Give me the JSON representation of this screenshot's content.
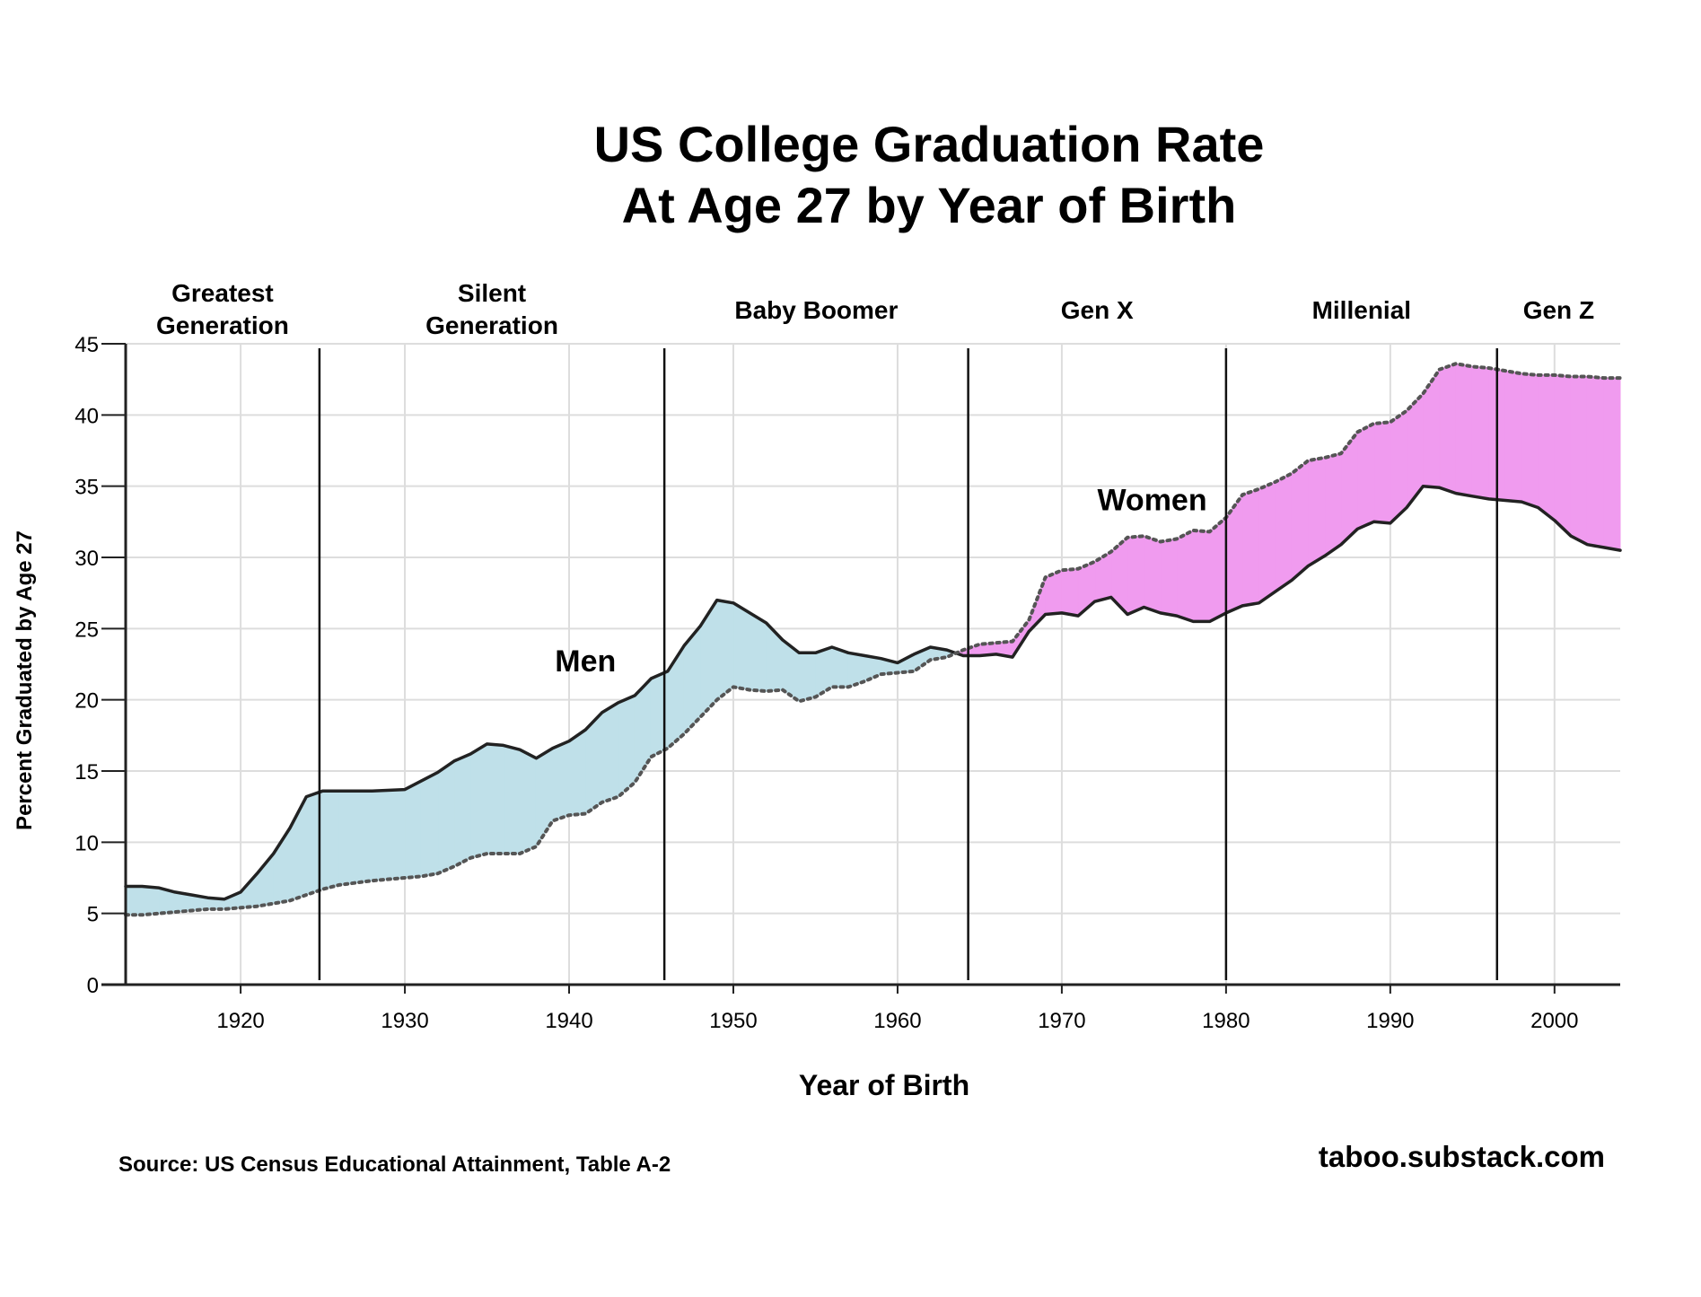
{
  "chart_data": {
    "type": "area",
    "title_lines": [
      "US College Graduation Rate",
      "At Age 27 by Year of Birth"
    ],
    "xlabel": "Year of Birth",
    "ylabel": "Percent Graduated by Age 27",
    "xlim": [
      1913,
      2004
    ],
    "ylim": [
      0,
      45
    ],
    "x_ticks": [
      1920,
      1930,
      1940,
      1950,
      1960,
      1970,
      1980,
      1990,
      2000
    ],
    "y_ticks": [
      0,
      5,
      10,
      15,
      20,
      25,
      30,
      35,
      40,
      45
    ],
    "grid": true,
    "series": [
      {
        "name": "Men",
        "style": "solid",
        "color": "#222222",
        "x": [
          1913,
          1914,
          1915,
          1916,
          1917,
          1918,
          1919,
          1920,
          1921,
          1922,
          1923,
          1924,
          1925,
          1926,
          1928,
          1930,
          1931,
          1932,
          1933,
          1934,
          1935,
          1936,
          1937,
          1938,
          1939,
          1940,
          1941,
          1942,
          1943,
          1944,
          1945,
          1946,
          1947,
          1948,
          1949,
          1950,
          1951,
          1952,
          1953,
          1954,
          1955,
          1956,
          1957,
          1958,
          1959,
          1960,
          1961,
          1962,
          1963,
          1964,
          1965,
          1966,
          1967,
          1968,
          1969,
          1970,
          1971,
          1972,
          1973,
          1974,
          1975,
          1976,
          1977,
          1978,
          1979,
          1980,
          1981,
          1982,
          1983,
          1984,
          1985,
          1986,
          1987,
          1988,
          1989,
          1990,
          1991,
          1992,
          1993,
          1994,
          1995,
          1996,
          1997,
          1998,
          1999,
          2000,
          2001,
          2002,
          2003,
          2004
        ],
        "values": [
          6.9,
          6.9,
          6.8,
          6.5,
          6.3,
          6.1,
          6.0,
          6.5,
          7.8,
          9.2,
          11.0,
          13.2,
          13.6,
          13.6,
          13.6,
          13.7,
          14.3,
          14.9,
          15.7,
          16.2,
          16.9,
          16.8,
          16.5,
          15.9,
          16.6,
          17.1,
          17.9,
          19.1,
          19.8,
          20.3,
          21.5,
          22.0,
          23.8,
          25.2,
          27.0,
          26.8,
          26.1,
          25.4,
          24.2,
          23.3,
          23.3,
          23.7,
          23.3,
          23.1,
          22.9,
          22.6,
          23.2,
          23.7,
          23.5,
          23.1,
          23.1,
          23.2,
          23.0,
          24.8,
          26.0,
          26.1,
          25.9,
          26.9,
          27.2,
          26.0,
          26.5,
          26.1,
          25.9,
          25.5,
          25.5,
          26.1,
          26.6,
          26.8,
          27.6,
          28.4,
          29.4,
          30.1,
          30.9,
          32.0,
          32.5,
          32.4,
          33.5,
          35.0,
          34.9,
          34.5,
          34.3,
          34.1,
          34.0,
          33.9,
          33.5,
          32.6,
          31.5,
          30.9,
          30.7,
          30.5
        ]
      },
      {
        "name": "Women",
        "style": "dotted",
        "color": "#555555",
        "x": [
          1913,
          1914,
          1915,
          1916,
          1917,
          1918,
          1919,
          1920,
          1921,
          1922,
          1923,
          1924,
          1925,
          1926,
          1928,
          1930,
          1931,
          1932,
          1933,
          1934,
          1935,
          1936,
          1937,
          1938,
          1939,
          1940,
          1941,
          1942,
          1943,
          1944,
          1945,
          1946,
          1947,
          1948,
          1949,
          1950,
          1951,
          1952,
          1953,
          1954,
          1955,
          1956,
          1957,
          1958,
          1959,
          1960,
          1961,
          1962,
          1963,
          1964,
          1965,
          1966,
          1967,
          1968,
          1969,
          1970,
          1971,
          1972,
          1973,
          1974,
          1975,
          1976,
          1977,
          1978,
          1979,
          1980,
          1981,
          1982,
          1983,
          1984,
          1985,
          1986,
          1987,
          1988,
          1989,
          1990,
          1991,
          1992,
          1993,
          1994,
          1995,
          1996,
          1997,
          1998,
          1999,
          2000,
          2001,
          2002,
          2003,
          2004
        ],
        "values": [
          4.9,
          4.9,
          5.0,
          5.1,
          5.2,
          5.3,
          5.3,
          5.4,
          5.5,
          5.7,
          5.9,
          6.3,
          6.7,
          7.0,
          7.3,
          7.5,
          7.6,
          7.8,
          8.3,
          8.9,
          9.2,
          9.2,
          9.2,
          9.7,
          11.5,
          11.9,
          12.0,
          12.8,
          13.2,
          14.2,
          16.0,
          16.6,
          17.6,
          18.8,
          20.0,
          20.9,
          20.7,
          20.6,
          20.7,
          19.9,
          20.2,
          20.9,
          20.9,
          21.3,
          21.8,
          21.9,
          22.0,
          22.8,
          23.0,
          23.5,
          23.9,
          24.0,
          24.1,
          25.6,
          28.6,
          29.1,
          29.2,
          29.7,
          30.4,
          31.4,
          31.5,
          31.1,
          31.3,
          31.9,
          31.8,
          32.8,
          34.4,
          34.8,
          35.3,
          35.9,
          36.8,
          37.0,
          37.3,
          38.8,
          39.4,
          39.5,
          40.3,
          41.5,
          43.2,
          43.6,
          43.4,
          43.3,
          43.1,
          42.9,
          42.8,
          42.8,
          42.7,
          42.7,
          42.6,
          42.6
        ]
      }
    ],
    "fill_colors": {
      "men_higher": "#bfe0e9",
      "women_higher": "#f09bef"
    },
    "series_labels": [
      {
        "text": "Men",
        "x": 1941,
        "y": 22
      },
      {
        "text": "Women",
        "x": 1975.5,
        "y": 33.3
      }
    ],
    "generations": [
      {
        "label_lines": [
          "Greatest",
          "Generation"
        ],
        "start": 1913,
        "end": 1924.8
      },
      {
        "label_lines": [
          "Silent",
          "Generation"
        ],
        "start": 1924.8,
        "end": 1945.8
      },
      {
        "label_lines": [
          "Baby Boomer"
        ],
        "start": 1945.8,
        "end": 1964.3
      },
      {
        "label_lines": [
          "Gen X"
        ],
        "start": 1964.3,
        "end": 1980
      },
      {
        "label_lines": [
          "Millenial"
        ],
        "start": 1980,
        "end": 1996.5
      },
      {
        "label_lines": [
          "Gen Z"
        ],
        "start": 1996.5,
        "end": 2004
      }
    ],
    "source": "Source: US Census Educational Attainment, Table A-2",
    "site": "taboo.substack.com"
  }
}
